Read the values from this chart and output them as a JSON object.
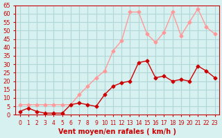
{
  "hours": [
    0,
    1,
    2,
    3,
    4,
    5,
    6,
    7,
    8,
    9,
    10,
    11,
    12,
    13,
    14,
    15,
    16,
    17,
    18,
    19,
    20,
    21,
    22,
    23
  ],
  "wind_avg": [
    2,
    4,
    2,
    1,
    1,
    1,
    6,
    7,
    6,
    5,
    12,
    17,
    19,
    20,
    31,
    32,
    22,
    23,
    20,
    21,
    20,
    29,
    26,
    22
  ],
  "wind_gust": [
    6,
    6,
    6,
    6,
    6,
    6,
    6,
    12,
    17,
    22,
    26,
    38,
    44,
    61,
    61,
    48,
    43,
    49,
    61,
    47,
    55,
    63,
    52,
    48
  ],
  "bg_color": "#d7f0f0",
  "grid_color": "#b0d8d8",
  "line_avg_color": "#cc0000",
  "line_gust_color": "#ff9999",
  "xlabel": "Vent moyen/en rafales ( km/h )",
  "xlabel_color": "#cc0000",
  "tick_color": "#cc0000",
  "ylim": [
    0,
    65
  ],
  "yticks": [
    0,
    5,
    10,
    15,
    20,
    25,
    30,
    35,
    40,
    45,
    50,
    55,
    60,
    65
  ]
}
